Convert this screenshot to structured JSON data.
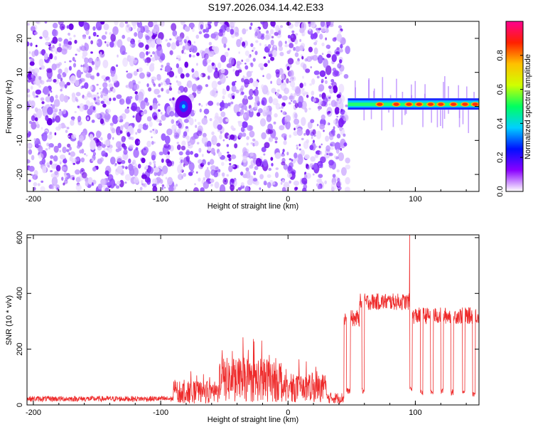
{
  "chart_data": [
    {
      "type": "heatmap",
      "title": "S197.2026.034.14.42.E33",
      "xlabel": "Height of straight line (km)",
      "ylabel": "Frequency (Hz)",
      "xlim": [
        -205,
        150
      ],
      "ylim": [
        -25,
        25
      ],
      "x_ticks": [
        -200,
        -100,
        0,
        100
      ],
      "y_ticks": [
        -20,
        -10,
        0,
        10,
        20
      ],
      "noise_region_x": [
        -205,
        47
      ],
      "blank_region_x": [
        47,
        150
      ],
      "blob": {
        "x": -82,
        "y": 0
      },
      "band": {
        "x_start": 47,
        "x_end": 150,
        "y": 0.5,
        "hot_spots_x": [
          72,
          85,
          95,
          103,
          112,
          120,
          130,
          139,
          147
        ]
      },
      "colorbar": {
        "label": "Normalized spectral amplitude",
        "range": [
          0,
          1
        ],
        "ticks": [
          0.0,
          0.2,
          0.4,
          0.6,
          0.8
        ],
        "tick_labels": [
          "0.0",
          "0.2",
          "0.4",
          "0.6",
          "0.8"
        ],
        "colormap": [
          "#ffffff",
          "#8a00ff",
          "#0010ff",
          "#00d0ff",
          "#00ff60",
          "#d0ff00",
          "#ffc000",
          "#ff2000",
          "#ff0090"
        ]
      }
    },
    {
      "type": "line",
      "xlabel": "Height of straight line (km)",
      "ylabel": "SNR (10 * v/v)",
      "xlim": [
        -205,
        150
      ],
      "ylim": [
        0,
        610
      ],
      "x_ticks": [
        -200,
        -100,
        0,
        100
      ],
      "y_ticks": [
        0,
        200,
        400,
        600
      ],
      "line_color": "#ee2a2a",
      "series": [
        {
          "name": "SNR",
          "segments": [
            {
              "x_start": -205,
              "x_end": -90,
              "base": 22,
              "spread": 10
            },
            {
              "x_start": -90,
              "x_end": -55,
              "base": 45,
              "spread": 40
            },
            {
              "x_start": -55,
              "x_end": -5,
              "base": 90,
              "spread": 80
            },
            {
              "x_start": -5,
              "x_end": 30,
              "base": 60,
              "spread": 50
            },
            {
              "x_start": 30,
              "x_end": 44,
              "base": 25,
              "spread": 20
            },
            {
              "x_start": 44,
              "x_end": 56,
              "base": 310,
              "spread": 30
            },
            {
              "x_start": 56,
              "x_end": 96,
              "base": 370,
              "spread": 30
            },
            {
              "x_start": 96,
              "x_end": 150,
              "base": 320,
              "spread": 30
            }
          ],
          "dropouts": [
            {
              "x_start": 46,
              "x_end": 49,
              "y": 50
            },
            {
              "x_start": 58,
              "x_end": 60,
              "y": 50
            },
            {
              "x_start": 95.5,
              "x_end": 97.5,
              "y": 60
            },
            {
              "x_start": 104,
              "x_end": 106,
              "y": 45
            },
            {
              "x_start": 112,
              "x_end": 114,
              "y": 45
            },
            {
              "x_start": 120,
              "x_end": 122,
              "y": 50
            },
            {
              "x_start": 128,
              "x_end": 130,
              "y": 45
            },
            {
              "x_start": 137,
              "x_end": 139,
              "y": 45
            },
            {
              "x_start": 145,
              "x_end": 147,
              "y": 40
            }
          ],
          "spike": {
            "x": 95.5,
            "y": 610
          }
        }
      ]
    }
  ]
}
